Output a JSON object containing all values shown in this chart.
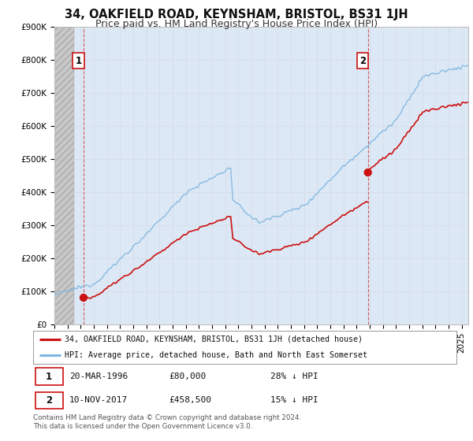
{
  "title": "34, OAKFIELD ROAD, KEYNSHAM, BRISTOL, BS31 1JH",
  "subtitle": "Price paid vs. HM Land Registry's House Price Index (HPI)",
  "ylim": [
    0,
    900000
  ],
  "xlim_start": 1994.0,
  "xlim_end": 2025.5,
  "yticks": [
    0,
    100000,
    200000,
    300000,
    400000,
    500000,
    600000,
    700000,
    800000,
    900000
  ],
  "ytick_labels": [
    "£0",
    "£100K",
    "£200K",
    "£300K",
    "£400K",
    "£500K",
    "£600K",
    "£700K",
    "£800K",
    "£900K"
  ],
  "transaction1": {
    "date_num": 1996.22,
    "price": 80000,
    "label": "1"
  },
  "transaction2": {
    "date_num": 2017.86,
    "price": 458500,
    "label": "2"
  },
  "hpi_color": "#7eb6e0",
  "price_color": "#cc1111",
  "grid_color": "#d8dde8",
  "background_color": "#ffffff",
  "plot_bg_color": "#dce8f5",
  "legend_line1": "34, OAKFIELD ROAD, KEYNSHAM, BRISTOL, BS31 1JH (detached house)",
  "legend_line2": "HPI: Average price, detached house, Bath and North East Somerset",
  "footer": "Contains HM Land Registry data © Crown copyright and database right 2024.\nThis data is licensed under the Open Government Licence v3.0.",
  "title_fontsize": 10.5,
  "subtitle_fontsize": 9,
  "tick_fontsize": 7.5,
  "annot_fontsize": 8.5
}
